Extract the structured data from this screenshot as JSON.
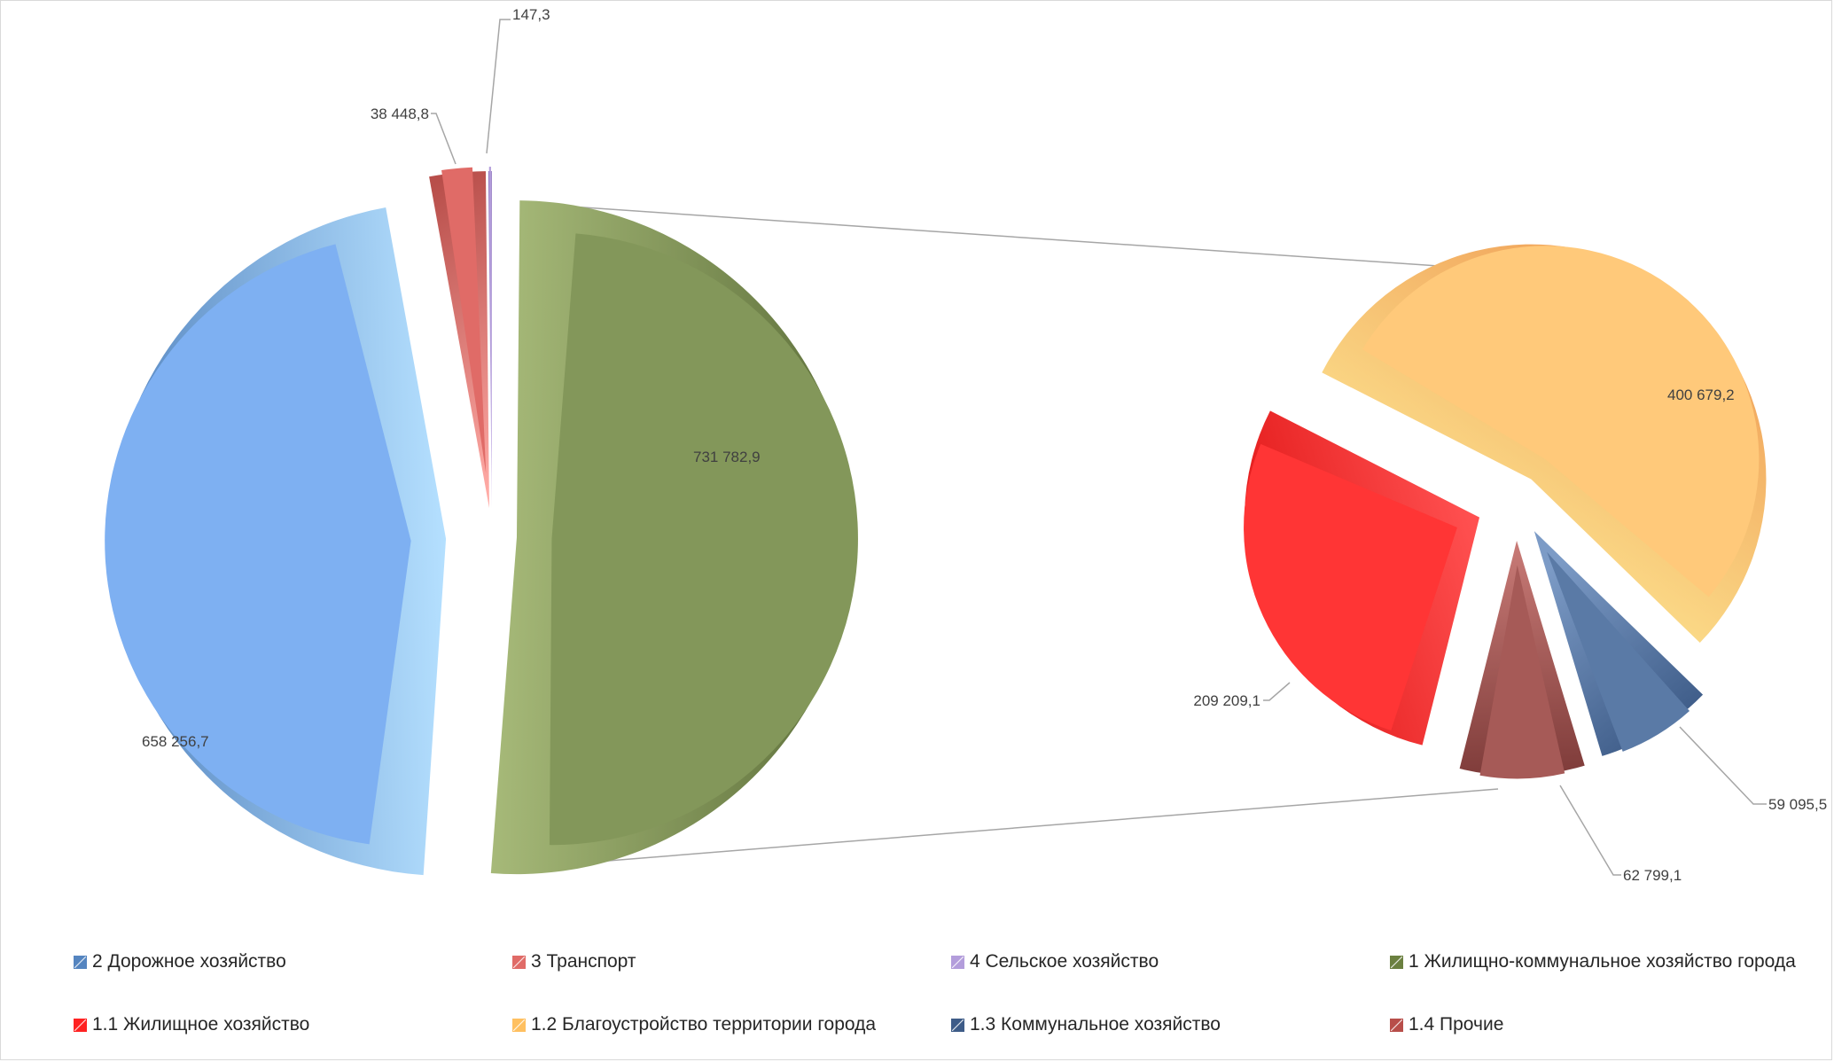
{
  "chart_data": {
    "type": "pie",
    "subtype": "bar-of-pie (pie of pie), exploded 3D",
    "main_pie": {
      "slices": [
        {
          "name": "2 Дорожное хозяйство",
          "value": 658256.7,
          "label": "658 256,7",
          "color": "#7eb0f2",
          "dark": "#5585c0",
          "light": "#b5e0ff"
        },
        {
          "name": "3 Транспорт",
          "value": 38448.8,
          "label": "38 448,8",
          "color": "#e06b67",
          "dark": "#b84e4a",
          "light": "#ffaaa5"
        },
        {
          "name": "4 Сельское хозяйство",
          "value": 147.3,
          "label": "147,3",
          "color": "#b39ddb",
          "dark": "#8e74bf",
          "light": "#d9c8f2"
        },
        {
          "name": "1 Жилищно-коммунальное  хозяйство города",
          "value": 731782.9,
          "label": "731 782,9",
          "color": "#83975a",
          "dark": "#5d6f3a",
          "light": "#a8bb7a"
        }
      ]
    },
    "secondary_pie": {
      "slices": [
        {
          "name": "1.2 Благоустройство территории города",
          "value": 400679.2,
          "label": "400 679,2",
          "color": "#ffc97a",
          "dark": "#f0a057",
          "light": "#fff09a"
        },
        {
          "name": "1.3 Коммунальное хозяйство",
          "value": 59095.5,
          "label": "59 095,5",
          "color": "#5a7aa6",
          "dark": "#3e5c88",
          "light": "#7c9bc6"
        },
        {
          "name": "1.4 Прочие",
          "value": 62799.1,
          "label": "62 799,1",
          "color": "#a65a57",
          "dark": "#7f3c3a",
          "light": "#c97b77"
        },
        {
          "name": "1.1 Жилищное хозяйство",
          "value": 209209.1,
          "label": "209 209,1",
          "color": "#ff3535",
          "dark": "#e01515",
          "light": "#ff5050"
        }
      ]
    },
    "legend": {
      "position": "bottom",
      "items": [
        {
          "label": "2 Дорожное хозяйство",
          "color": "#5585c0"
        },
        {
          "label": "3 Транспорт",
          "color": "#e06b67"
        },
        {
          "label": "4 Сельское хозяйство",
          "color": "#b39ddb"
        },
        {
          "label": "1 Жилищно-коммунальное  хозяйство города",
          "color": "#6b8040"
        },
        {
          "label": "1.1 Жилищное хозяйство",
          "color": "#ff2222"
        },
        {
          "label": "1.2 Благоустройство территории города",
          "color": "#ffc060"
        },
        {
          "label": "1.3 Коммунальное хозяйство",
          "color": "#3e5c88"
        },
        {
          "label": "1.4 Прочие",
          "color": "#b84e4a"
        }
      ]
    }
  }
}
